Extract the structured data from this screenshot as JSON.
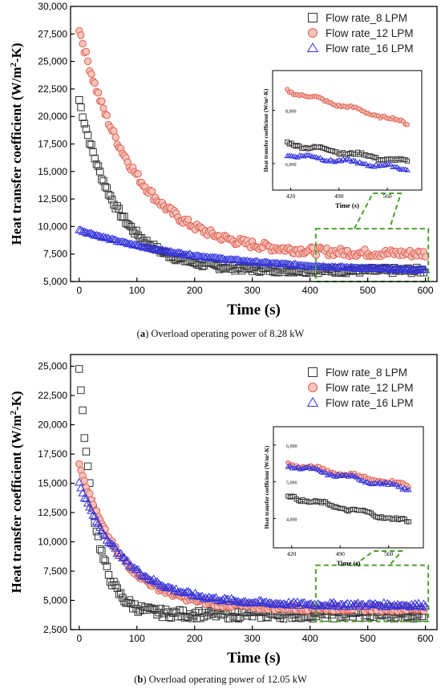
{
  "chart_data": [
    {
      "id": "a",
      "type": "scatter",
      "panel_letter": "a",
      "caption": "Overload operating power of 8.28 kW",
      "xlabel": "Time (s)",
      "ylabel": "Heat transfer coefficient",
      "ylabel_unit_prefix": " (W/m",
      "ylabel_unit_sup": "2",
      "ylabel_unit_suffix": "-K)",
      "xlim": [
        -15,
        620
      ],
      "ylim": [
        5000,
        30000
      ],
      "xticks": [
        0,
        100,
        200,
        300,
        400,
        500,
        600
      ],
      "xtick_labels": [
        "0",
        "100",
        "200",
        "300",
        "400",
        "500",
        "600"
      ],
      "yticks": [
        5000,
        7500,
        10000,
        12500,
        15000,
        17500,
        20000,
        22500,
        25000,
        27500,
        30000
      ],
      "ytick_labels": [
        "5,000",
        "7,500",
        "10,000",
        "12,500",
        "15,000",
        "17,500",
        "20,000",
        "22,500",
        "25,000",
        "27,500",
        "30,000"
      ],
      "legend_position": "top-right",
      "zoom_box_x": [
        410,
        605
      ],
      "zoom_box_y": [
        5000,
        9800
      ],
      "series": [
        {
          "name": "Flow rate_8 LPM",
          "marker": "square",
          "color": "#333333",
          "fill": "none",
          "y0": 21500,
          "y_end": 6000,
          "tau": 65,
          "x_max": 598
        },
        {
          "name": "Flow rate_12 LPM",
          "marker": "circle",
          "color": "#e06050",
          "fill": "#f6c4bd",
          "y0": 28000,
          "y_end": 7500,
          "tau": 95,
          "x_max": 600
        },
        {
          "name": "Flow rate_16 LPM",
          "marker": "triangle",
          "color": "#3333dd",
          "fill": "none",
          "y0": 9700,
          "y_end": 5800,
          "tau": 220,
          "x_max": 600
        }
      ],
      "inset": {
        "xlabel": "Time (s)",
        "ylabel": "Heat transfer coefficient (W/m²-K)",
        "xlim": [
          410,
          610
        ],
        "ylim": [
          5000,
          9500
        ],
        "xticks": [
          420,
          490,
          560
        ],
        "xtick_labels": [
          "420",
          "490",
          "560"
        ],
        "yticks": [
          6000,
          8000
        ],
        "ytick_labels": [
          "6,000",
          "8,000"
        ],
        "series_ranges": [
          {
            "y0": 6750,
            "y1": 6050
          },
          {
            "y0": 8750,
            "y1": 7500
          },
          {
            "y0": 6350,
            "y1": 5800
          }
        ]
      }
    },
    {
      "id": "b",
      "type": "scatter",
      "panel_letter": "b",
      "caption": "Overload operating power of 12.05 kW",
      "xlabel": "Time (s)",
      "ylabel": "Heat transfer coefficient",
      "ylabel_unit_prefix": " (W/m",
      "ylabel_unit_sup": "2",
      "ylabel_unit_suffix": "-K)",
      "xlim": [
        -15,
        620
      ],
      "ylim": [
        2500,
        26000
      ],
      "xticks": [
        0,
        100,
        200,
        300,
        400,
        500,
        600
      ],
      "xtick_labels": [
        "0",
        "100",
        "200",
        "300",
        "400",
        "500",
        "600"
      ],
      "yticks": [
        2500,
        5000,
        7500,
        10000,
        12500,
        15000,
        17500,
        20000,
        22500,
        25000
      ],
      "ytick_labels": [
        "2,500",
        "5,000",
        "7,500",
        "10,000",
        "12,500",
        "15,000",
        "17,500",
        "20,000",
        "22,500",
        "25,000"
      ],
      "legend_position": "top-right",
      "zoom_box_x": [
        410,
        605
      ],
      "zoom_box_y": [
        3200,
        8000
      ],
      "series": [
        {
          "name": "Flow rate_8 LPM",
          "marker": "square",
          "color": "#333333",
          "fill": "none",
          "y0": 25000,
          "y_end": 3800,
          "tau": 28,
          "x_max": 598
        },
        {
          "name": "Flow rate_12 LPM",
          "marker": "circle",
          "color": "#e06050",
          "fill": "#f6c4bd",
          "y0": 16800,
          "y_end": 4300,
          "tau": 70,
          "x_max": 600
        },
        {
          "name": "Flow rate_16 LPM",
          "marker": "triangle",
          "color": "#3333dd",
          "fill": "none",
          "y0": 15000,
          "y_end": 4600,
          "tau": 80,
          "x_max": 600
        }
      ],
      "inset": {
        "xlabel": "Time (s)",
        "ylabel": "Heat transfer coefficient (W/m²-K)",
        "xlim": [
          410,
          610
        ],
        "ylim": [
          3200,
          6500
        ],
        "xticks": [
          420,
          490,
          560
        ],
        "xtick_labels": [
          "420",
          "490",
          "560"
        ],
        "yticks": [
          4000,
          5000,
          6000
        ],
        "ytick_labels": [
          "4,000",
          "5,000",
          "6,000"
        ],
        "series_ranges": [
          {
            "y0": 4600,
            "y1": 3900
          },
          {
            "y0": 5500,
            "y1": 4900
          },
          {
            "y0": 5450,
            "y1": 4800
          }
        ]
      }
    }
  ]
}
